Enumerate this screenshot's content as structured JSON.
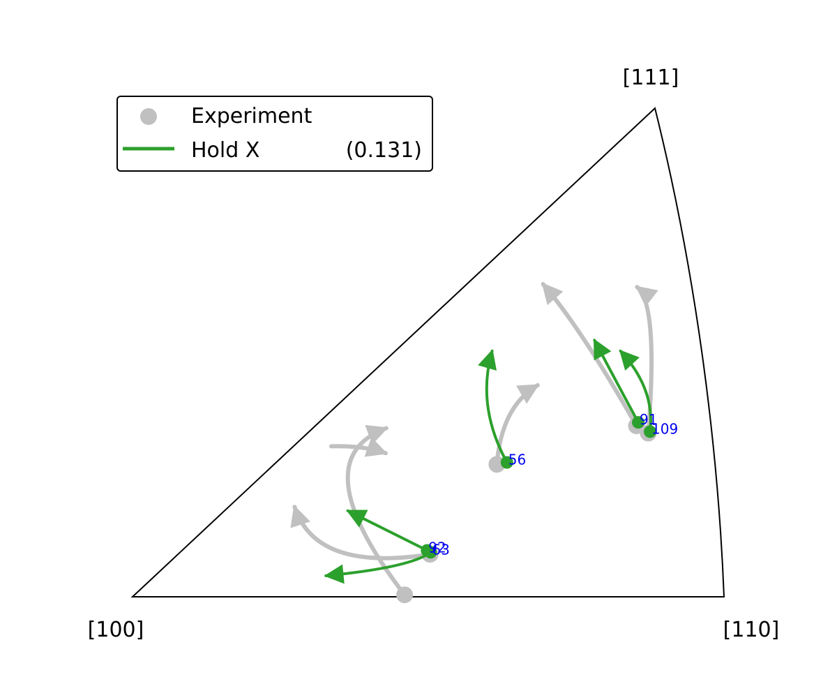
{
  "chart_data": {
    "type": "scatter",
    "title": "",
    "corner_labels": {
      "origin": "[100]",
      "right": "[110]",
      "top": "[111]"
    },
    "legend": {
      "placement": "top-left",
      "entries": [
        {
          "marker": "circle",
          "label": "Experiment",
          "value": ""
        },
        {
          "marker": "line",
          "label": "Hold X",
          "value": "(0.131)"
        }
      ]
    },
    "colors": {
      "experiment": "#c0c0c0",
      "model": "#2ca02c",
      "grain_label": "#0000ee",
      "frame": "#000000"
    },
    "grains": [
      {
        "id": "56",
        "experiment": {
          "start": [
            0.616,
            0.271
          ],
          "end": [
            0.685,
            0.433
          ],
          "control": [
            0.624,
            0.39
          ]
        },
        "model": {
          "start": [
            0.633,
            0.275
          ],
          "end": [
            0.608,
            0.503
          ],
          "control": [
            0.581,
            0.39
          ]
        }
      },
      {
        "id": "91",
        "experiment": {
          "start": [
            0.852,
            0.35
          ],
          "end": [
            0.694,
            0.64
          ],
          "control": [
            0.758,
            0.55
          ]
        },
        "model": {
          "start": [
            0.855,
            0.357
          ],
          "end": [
            0.781,
            0.525
          ],
          "control": [
            0.818,
            0.44
          ]
        }
      },
      {
        "id": "109",
        "experiment": {
          "start": [
            0.872,
            0.335
          ],
          "end": [
            0.853,
            0.634
          ],
          "control": [
            0.889,
            0.6
          ]
        },
        "model": {
          "start": [
            0.875,
            0.338
          ],
          "end": [
            0.825,
            0.503
          ],
          "control": [
            0.884,
            0.425
          ]
        }
      },
      {
        "id": "92",
        "experiment": {
          "start": [
            0.503,
            0.087
          ],
          "end": [
            0.274,
            0.184
          ],
          "control": [
            0.31,
            0.05
          ]
        },
        "model": {
          "start": [
            0.498,
            0.095
          ],
          "end": [
            0.364,
            0.176
          ],
          "control": [
            0.44,
            0.13
          ]
        }
      },
      {
        "id": "63",
        "experiment": {
          "start": [
            0.46,
            0.004
          ],
          "end": [
            0.429,
            0.345
          ],
          "control": [
            0.285,
            0.28
          ]
        },
        "model": {
          "start": [
            0.504,
            0.091
          ],
          "end": [
            0.327,
            0.043
          ],
          "control": [
            0.47,
            0.06
          ]
        }
      }
    ],
    "extra_experiment_arrows": [
      {
        "start": [
          0.336,
          0.308
        ],
        "end": [
          0.428,
          0.294
        ],
        "control": [
          0.39,
          0.31
        ]
      }
    ]
  }
}
